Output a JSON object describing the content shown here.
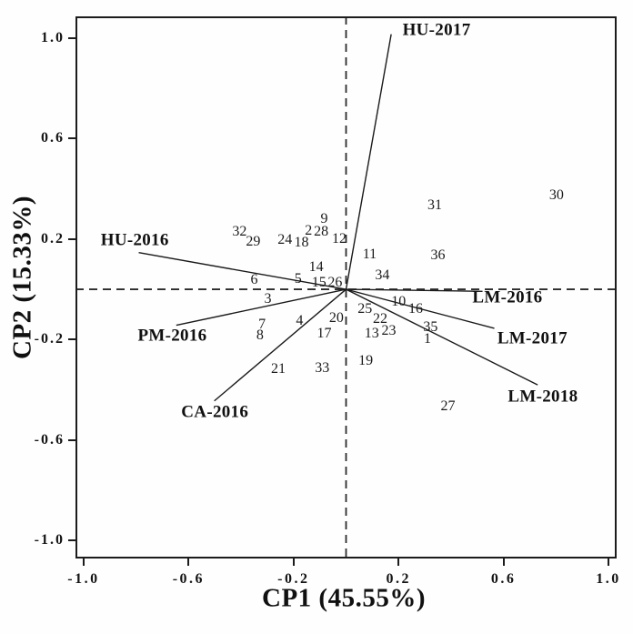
{
  "figure": {
    "background": "#fefefe",
    "ink_color": "#141414",
    "vector_color": "#1a1a1a",
    "dashed_line_color": "#2b2b2b",
    "border_color": "#1c1c1c"
  },
  "chart_data": {
    "type": "scatter",
    "subtype": "pca-biplot",
    "title": "",
    "xlabel": "CP1 (45.55%)",
    "ylabel": "CP2 (15.33%)",
    "xlim": [
      -1.031,
      1.031
    ],
    "ylim": [
      -1.071,
      1.086
    ],
    "grid": false,
    "legend": "none",
    "reference_lines": [
      {
        "axis": "vertical",
        "value": 0,
        "style": "dashed"
      },
      {
        "axis": "horizontal",
        "value": 0,
        "style": "dashed"
      }
    ],
    "xticks": [
      {
        "value": -1.0,
        "label": "-1.0"
      },
      {
        "value": -0.6,
        "label": "-0.6"
      },
      {
        "value": -0.2,
        "label": "-0.2"
      },
      {
        "value": 0.2,
        "label": "0.2"
      },
      {
        "value": 0.6,
        "label": "0.6"
      },
      {
        "value": 1.0,
        "label": "1.0"
      }
    ],
    "yticks": [
      {
        "value": -1.0,
        "label": "-1.0"
      },
      {
        "value": -0.6,
        "label": "-0.6"
      },
      {
        "value": -0.2,
        "label": "-0.2"
      },
      {
        "value": 0.2,
        "label": "0.2"
      },
      {
        "value": 0.6,
        "label": "0.6"
      },
      {
        "value": 1.0,
        "label": "1.0"
      }
    ],
    "points": [
      {
        "label": "1",
        "x": 0.31,
        "y": -0.2
      },
      {
        "label": "2",
        "x": -0.143,
        "y": 0.233
      },
      {
        "label": "3",
        "x": -0.298,
        "y": -0.04
      },
      {
        "label": "4",
        "x": -0.177,
        "y": -0.128
      },
      {
        "label": "5",
        "x": -0.183,
        "y": 0.04
      },
      {
        "label": "6",
        "x": -0.35,
        "y": 0.037
      },
      {
        "label": "7",
        "x": -0.32,
        "y": -0.14
      },
      {
        "label": "8",
        "x": -0.328,
        "y": -0.186
      },
      {
        "label": "9",
        "x": -0.083,
        "y": 0.279
      },
      {
        "label": "10",
        "x": 0.2,
        "y": -0.05
      },
      {
        "label": "11",
        "x": 0.09,
        "y": 0.137
      },
      {
        "label": "12",
        "x": -0.026,
        "y": 0.199
      },
      {
        "label": "13",
        "x": 0.098,
        "y": -0.177
      },
      {
        "label": "14",
        "x": -0.114,
        "y": 0.087
      },
      {
        "label": "15",
        "x": -0.103,
        "y": 0.027
      },
      {
        "label": "16",
        "x": 0.265,
        "y": -0.079
      },
      {
        "label": "17",
        "x": -0.083,
        "y": -0.176
      },
      {
        "label": "18",
        "x": -0.17,
        "y": 0.185
      },
      {
        "label": "19",
        "x": 0.075,
        "y": -0.286
      },
      {
        "label": "20",
        "x": -0.037,
        "y": -0.116
      },
      {
        "label": "21",
        "x": -0.258,
        "y": -0.318
      },
      {
        "label": "22",
        "x": 0.13,
        "y": -0.118
      },
      {
        "label": "23",
        "x": 0.163,
        "y": -0.168
      },
      {
        "label": "24",
        "x": -0.233,
        "y": 0.195
      },
      {
        "label": "25",
        "x": 0.072,
        "y": -0.081
      },
      {
        "label": "26",
        "x": -0.042,
        "y": 0.024
      },
      {
        "label": "27",
        "x": 0.388,
        "y": -0.468
      },
      {
        "label": "28",
        "x": -0.095,
        "y": 0.228
      },
      {
        "label": "29",
        "x": -0.354,
        "y": 0.188
      },
      {
        "label": "30",
        "x": 0.802,
        "y": 0.374
      },
      {
        "label": "31",
        "x": 0.338,
        "y": 0.332
      },
      {
        "label": "32",
        "x": -0.406,
        "y": 0.228
      },
      {
        "label": "33",
        "x": -0.091,
        "y": -0.315
      },
      {
        "label": "34",
        "x": 0.138,
        "y": 0.055
      },
      {
        "label": "35",
        "x": 0.322,
        "y": -0.151
      },
      {
        "label": "36",
        "x": 0.35,
        "y": 0.133
      }
    ],
    "vectors": [
      {
        "name": "HU-2017",
        "x": 0.172,
        "y": 1.015,
        "label_x": 0.345,
        "label_y": 1.033
      },
      {
        "name": "HU-2016",
        "x": -0.79,
        "y": 0.146,
        "label_x": -0.805,
        "label_y": 0.196
      },
      {
        "name": "PM-2016",
        "x": -0.647,
        "y": -0.143,
        "label_x": -0.662,
        "label_y": -0.184
      },
      {
        "name": "CA-2016",
        "x": -0.502,
        "y": -0.444,
        "label_x": -0.5,
        "label_y": -0.488
      },
      {
        "name": "LM-2016",
        "x": 0.52,
        "y": -0.008,
        "label_x": 0.615,
        "label_y": -0.034
      },
      {
        "name": "LM-2017",
        "x": 0.565,
        "y": -0.155,
        "label_x": 0.71,
        "label_y": -0.194
      },
      {
        "name": "LM-2018",
        "x": 0.73,
        "y": -0.38,
        "label_x": 0.75,
        "label_y": -0.426
      }
    ]
  }
}
